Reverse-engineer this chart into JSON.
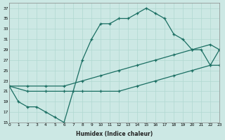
{
  "xlabel": "Humidex (Indice chaleur)",
  "bg_color": "#cce8e4",
  "line_color": "#1a6e62",
  "grid_color": "#b0d8d0",
  "xlim": [
    0,
    23
  ],
  "ylim": [
    15,
    38
  ],
  "xticks": [
    0,
    1,
    2,
    3,
    4,
    5,
    6,
    7,
    8,
    9,
    10,
    11,
    12,
    13,
    14,
    15,
    16,
    17,
    18,
    19,
    20,
    21,
    22,
    23
  ],
  "yticks": [
    15,
    17,
    19,
    21,
    23,
    25,
    27,
    29,
    31,
    33,
    35,
    37
  ],
  "line1_x": [
    0,
    1,
    2,
    3,
    4,
    5,
    6,
    7,
    8,
    9,
    10,
    11,
    12,
    13,
    14,
    15,
    16,
    17,
    18,
    19,
    20,
    21,
    22,
    23
  ],
  "line1_y": [
    22,
    19,
    18,
    18,
    17,
    16,
    15,
    21,
    27,
    31,
    34,
    34,
    35,
    35,
    36,
    37,
    36,
    35,
    32,
    31,
    29,
    29,
    26,
    29
  ],
  "line2_x": [
    0,
    2,
    4,
    6,
    8,
    10,
    12,
    14,
    16,
    18,
    20,
    22,
    23
  ],
  "line2_y": [
    22,
    22,
    22,
    22,
    23,
    24,
    25,
    26,
    27,
    28,
    29,
    30,
    29
  ],
  "line3_x": [
    0,
    2,
    4,
    6,
    8,
    10,
    12,
    14,
    16,
    18,
    20,
    22,
    23
  ],
  "line3_y": [
    22,
    21,
    21,
    21,
    21,
    21,
    21,
    22,
    23,
    24,
    25,
    26,
    26
  ]
}
